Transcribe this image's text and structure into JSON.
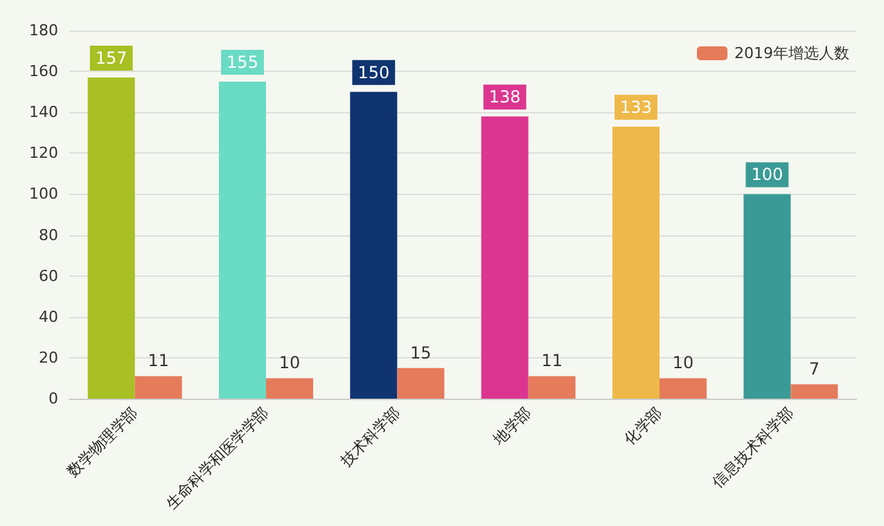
{
  "chart_data": {
    "type": "bar",
    "categories": [
      "数学物理学部",
      "生命科学和医学学部",
      "技术科学部",
      "地学部",
      "化学部",
      "信息技术科学部"
    ],
    "series": [
      {
        "colors": [
          "#a8c023",
          "#6adbc4",
          "#0f3470",
          "#dc3590",
          "#eeb94a",
          "#3a9a95"
        ],
        "values": [
          157,
          155,
          150,
          138,
          133,
          100
        ]
      },
      {
        "name": "2019年增选人数",
        "color": "#e57b5b",
        "values": [
          11,
          10,
          15,
          11,
          10,
          7
        ]
      }
    ],
    "ylim": [
      0,
      180
    ],
    "yticks": [
      0,
      20,
      40,
      60,
      80,
      100,
      120,
      140,
      160,
      180
    ],
    "grid": "y",
    "legend": "top right",
    "data_labels": true
  }
}
